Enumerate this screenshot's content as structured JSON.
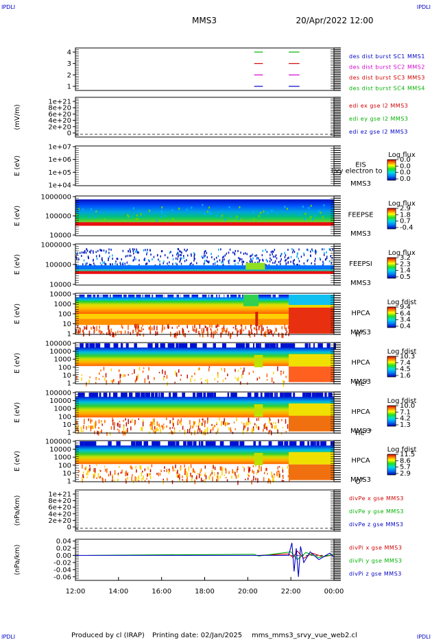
{
  "header": {
    "corner_tl": "IPDLI",
    "corner_tr": "IPDLI",
    "corner_bl": "IPDLI",
    "corner_br": "IPDLI",
    "title_spacecraft": "MMS3",
    "title_datetime": "20/Apr/2022 12:00"
  },
  "footer": {
    "produced_by": "Produced by cl (IRAP)",
    "printing_date": "Printing date: 02/Jan/2025",
    "filename": "mms_mms3_srvy_vue_web2.cl"
  },
  "colors": {
    "blue": "#0000c8",
    "magenta": "#d000d0",
    "red": "#d00000",
    "green": "#00b000"
  },
  "chart_data": {
    "type": "multi-panel time series / spectrogram",
    "x_axis": {
      "ticks": [
        "12:00",
        "14:00",
        "16:00",
        "18:00",
        "20:00",
        "22:00",
        "00:00"
      ],
      "start_hour": 12,
      "end_hour": 24
    },
    "panels": [
      {
        "id": "p1",
        "kind": "burst",
        "ylabel": "",
        "yticks": [
          "4",
          "3",
          "2",
          "1"
        ],
        "legend": [
          {
            "text": "des dist burst SC1 MMS1",
            "color": "#0000c8"
          },
          {
            "text": "des dist burst SC2 MMS2",
            "color": "#d000d0"
          },
          {
            "text": "des dist burst SC3 MMS3",
            "color": "#d00000"
          },
          {
            "text": "des dist burst SC4 MMS4",
            "color": "#00b000"
          }
        ],
        "burst_intervals": [
          {
            "sc": 4,
            "start": 20.3,
            "end": 20.7,
            "color": "#00b000"
          },
          {
            "sc": 4,
            "start": 21.9,
            "end": 22.4,
            "color": "#00b000"
          },
          {
            "sc": 3,
            "start": 20.3,
            "end": 20.7,
            "color": "#d00000"
          },
          {
            "sc": 3,
            "start": 21.9,
            "end": 22.4,
            "color": "#d00000"
          },
          {
            "sc": 2,
            "start": 20.3,
            "end": 20.7,
            "color": "#d000d0"
          },
          {
            "sc": 2,
            "start": 21.9,
            "end": 22.4,
            "color": "#d000d0"
          },
          {
            "sc": 1,
            "start": 20.3,
            "end": 20.7,
            "color": "#0000c8"
          },
          {
            "sc": 1,
            "start": 21.9,
            "end": 22.4,
            "color": "#0000c8"
          }
        ]
      },
      {
        "id": "p2",
        "kind": "line",
        "ylabel": "(mV/m)",
        "yticks": [
          "1e+21",
          "8e+20",
          "6e+20",
          "4e+20",
          "2e+20",
          "0"
        ],
        "legend": [
          {
            "text": "edi ex gse l2 MMS3",
            "color": "#d00000"
          },
          {
            "text": "edi ey gse l2 MMS3",
            "color": "#00b000"
          },
          {
            "text": "edi ez gse l2 MMS3",
            "color": "#0000c8"
          }
        ]
      },
      {
        "id": "p3",
        "kind": "spectrogram",
        "ylabel": "E (eV)",
        "yticks": [
          "1e+07",
          "1e+06",
          "1e+05",
          "1e+04"
        ],
        "instrument": "EIS",
        "instrument_overlay": "ljvy electron to",
        "spacecraft": "MMS3",
        "species": "",
        "cbar_title": "Log flux",
        "cbar_ticks": [
          "0.0",
          "0.0",
          "0.0",
          "0.0"
        ],
        "fill": "empty"
      },
      {
        "id": "p4",
        "kind": "spectrogram",
        "ylabel": "E (eV)",
        "yticks": [
          "1000000",
          "100000",
          "10000"
        ],
        "instrument": "FEEPSE",
        "spacecraft": "MMS3",
        "species": "",
        "cbar_title": "Log flux",
        "cbar_ticks": [
          "2.9",
          "1.8",
          "0.7",
          "-0.4"
        ],
        "fill": "feepse"
      },
      {
        "id": "p5",
        "kind": "spectrogram",
        "ylabel": "E (eV)",
        "yticks": [
          "1000000",
          "100000",
          "10000"
        ],
        "instrument": "FEEPSI",
        "spacecraft": "MMS3",
        "species": "",
        "cbar_title": "Log flux",
        "cbar_ticks": [
          "3.2",
          "2.3",
          "1.4",
          "0.5"
        ],
        "fill": "feepsi"
      },
      {
        "id": "p6",
        "kind": "spectrogram",
        "ylabel": "E (eV)",
        "yticks": [
          "10000",
          "1000",
          "100",
          "10",
          "1"
        ],
        "instrument": "HPCA",
        "spacecraft": "MMS3",
        "species": "H",
        "species_sup": "+",
        "cbar_title": "Log fdist",
        "cbar_ticks": [
          "9.4",
          "6.4",
          "3.4",
          "0.4"
        ],
        "fill": "hplus"
      },
      {
        "id": "p7",
        "kind": "spectrogram",
        "ylabel": "E (eV)",
        "yticks": [
          "100000",
          "10000",
          "1000",
          "100",
          "10",
          "1"
        ],
        "instrument": "HPCA",
        "spacecraft": "MMS3",
        "species": "He",
        "species_sup": "+",
        "cbar_title": "Log fdist",
        "cbar_ticks": [
          "10.3",
          "7.4",
          "4.5",
          "1.6"
        ],
        "fill": "heplus"
      },
      {
        "id": "p8",
        "kind": "spectrogram",
        "ylabel": "E (eV)",
        "yticks": [
          "100000",
          "10000",
          "1000",
          "100",
          "10",
          "1"
        ],
        "instrument": "HPCA",
        "spacecraft": "MMS3",
        "species": "He",
        "species_sup": "++",
        "cbar_title": "Log fdist",
        "cbar_ticks": [
          "10.0",
          "7.1",
          "4.2",
          "1.3"
        ],
        "fill": "hepp"
      },
      {
        "id": "p9",
        "kind": "spectrogram",
        "ylabel": "E (eV)",
        "yticks": [
          "100000",
          "10000",
          "1000",
          "100",
          "10",
          "1"
        ],
        "instrument": "HPCA",
        "spacecraft": "MMS3",
        "species": "O",
        "species_sup": "+",
        "cbar_title": "Log fdist",
        "cbar_ticks": [
          "11.5",
          "8.6",
          "5.7",
          "2.9"
        ],
        "fill": "oplus"
      },
      {
        "id": "p10",
        "kind": "line",
        "ylabel": "(nPa/km)",
        "yticks": [
          "1e+21",
          "8e+20",
          "6e+20",
          "4e+20",
          "2e+20",
          "0"
        ],
        "legend": [
          {
            "text": "divPe x gse MMS3",
            "color": "#d00000"
          },
          {
            "text": "divPe y gse MMS3",
            "color": "#00b000"
          },
          {
            "text": "divPe z gse MMS3",
            "color": "#0000c8"
          }
        ]
      },
      {
        "id": "p11",
        "kind": "line",
        "ylabel": "(nPa/km)",
        "yticks": [
          "0.04",
          "0.02",
          "0.00",
          "-0.02",
          "-0.04",
          "-0.06"
        ],
        "ylim": [
          -0.07,
          0.045
        ],
        "legend": [
          {
            "text": "divPi x gse MMS3",
            "color": "#d00000"
          },
          {
            "text": "divPi y gse MMS3",
            "color": "#00b000"
          },
          {
            "text": "divPi z gse MMS3",
            "color": "#0000c8"
          }
        ],
        "series": [
          {
            "component": "x",
            "color": "#d00000",
            "points": [
              [
                12,
                0
              ],
              [
                20.5,
                0
              ],
              [
                21.9,
                0.004
              ],
              [
                22.1,
                -0.006
              ],
              [
                22.3,
                0.012
              ],
              [
                22.6,
                -0.008
              ],
              [
                23,
                0.006
              ],
              [
                23.5,
                -0.004
              ],
              [
                24,
                0.002
              ]
            ]
          },
          {
            "component": "y",
            "color": "#00b000",
            "points": [
              [
                12,
                0
              ],
              [
                20.3,
                0.003
              ],
              [
                20.5,
                -0.002
              ],
              [
                22.0,
                0.01
              ],
              [
                22.3,
                -0.012
              ],
              [
                22.7,
                0.008
              ],
              [
                23.3,
                -0.006
              ],
              [
                24,
                0.003
              ]
            ]
          },
          {
            "component": "z",
            "color": "#0000c8",
            "points": [
              [
                12,
                0
              ],
              [
                21.9,
                0
              ],
              [
                22.05,
                0.035
              ],
              [
                22.15,
                -0.045
              ],
              [
                22.25,
                0.02
              ],
              [
                22.35,
                -0.06
              ],
              [
                22.45,
                0.025
              ],
              [
                22.6,
                -0.02
              ],
              [
                22.9,
                0.01
              ],
              [
                23.3,
                -0.012
              ],
              [
                23.8,
                0.006
              ],
              [
                24,
                -0.004
              ]
            ]
          }
        ]
      }
    ]
  }
}
